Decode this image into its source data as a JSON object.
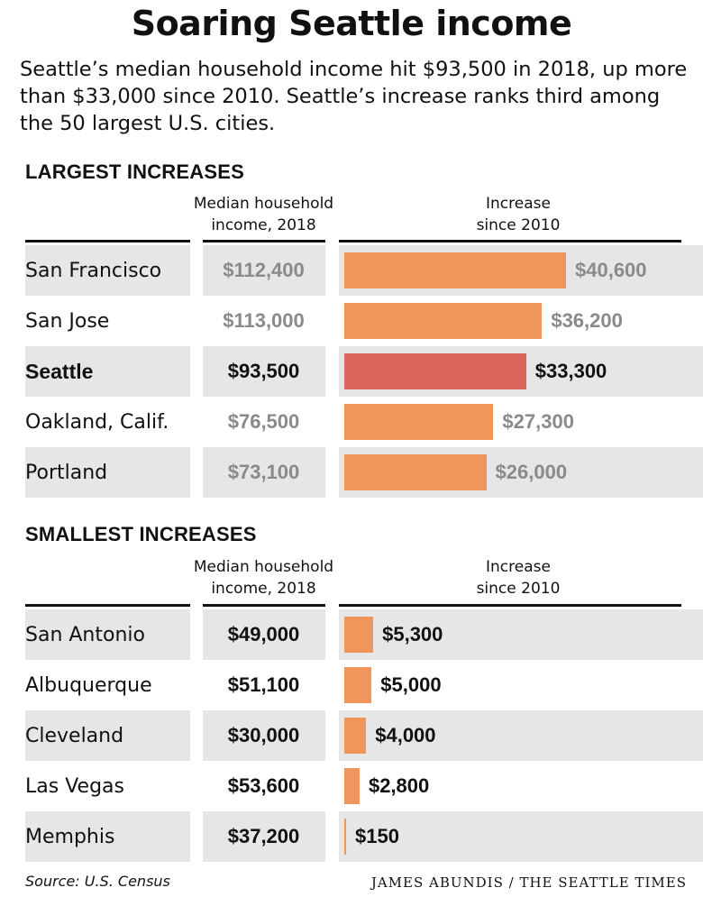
{
  "title": "Soaring Seattle income",
  "subtitle": "Seattle’s median household income hit $93,500 in 2018, up more than $33,000 since 2010. Seattle’s increase ranks third among the 50 largest U.S. cities.",
  "columns": {
    "income_line1": "Median household",
    "income_line2": "income, 2018",
    "increase_line1": "Increase",
    "increase_line2": "since 2010"
  },
  "colors": {
    "bar": "#f0955c",
    "bar_highlight": "#dc6659",
    "row_bg": "#e6e6e6",
    "gray_text": "#8a8a8a",
    "dark_text": "#111111"
  },
  "footer": {
    "source": "Source: U.S. Census",
    "credit": "JAMES ABUNDIS / THE SEATTLE TIMES"
  },
  "chart_data": [
    {
      "type": "bar",
      "title": "LARGEST INCREASES",
      "categories": [
        "San Francisco",
        "San Jose",
        "Seattle",
        "Oakland, Calif.",
        "Portland"
      ],
      "income_labels": [
        "$112,400",
        "$113,000",
        "$93,500",
        "$76,500",
        "$73,100"
      ],
      "values": [
        40600,
        36200,
        33300,
        27300,
        26000
      ],
      "value_labels": [
        "$40,600",
        "$36,200",
        "$33,300",
        "$27,300",
        "$26,000"
      ],
      "highlight": "Seattle"
    },
    {
      "type": "bar",
      "title": "SMALLEST INCREASES",
      "categories": [
        "San Antonio",
        "Albuquerque",
        "Cleveland",
        "Las Vegas",
        "Memphis"
      ],
      "income_labels": [
        "$49,000",
        "$51,100",
        "$30,000",
        "$53,600",
        "$37,200"
      ],
      "values": [
        5300,
        5000,
        4000,
        2800,
        150
      ],
      "value_labels": [
        "$5,300",
        "$5,000",
        "$4,000",
        "$2,800",
        "$150"
      ],
      "highlight": ""
    }
  ]
}
